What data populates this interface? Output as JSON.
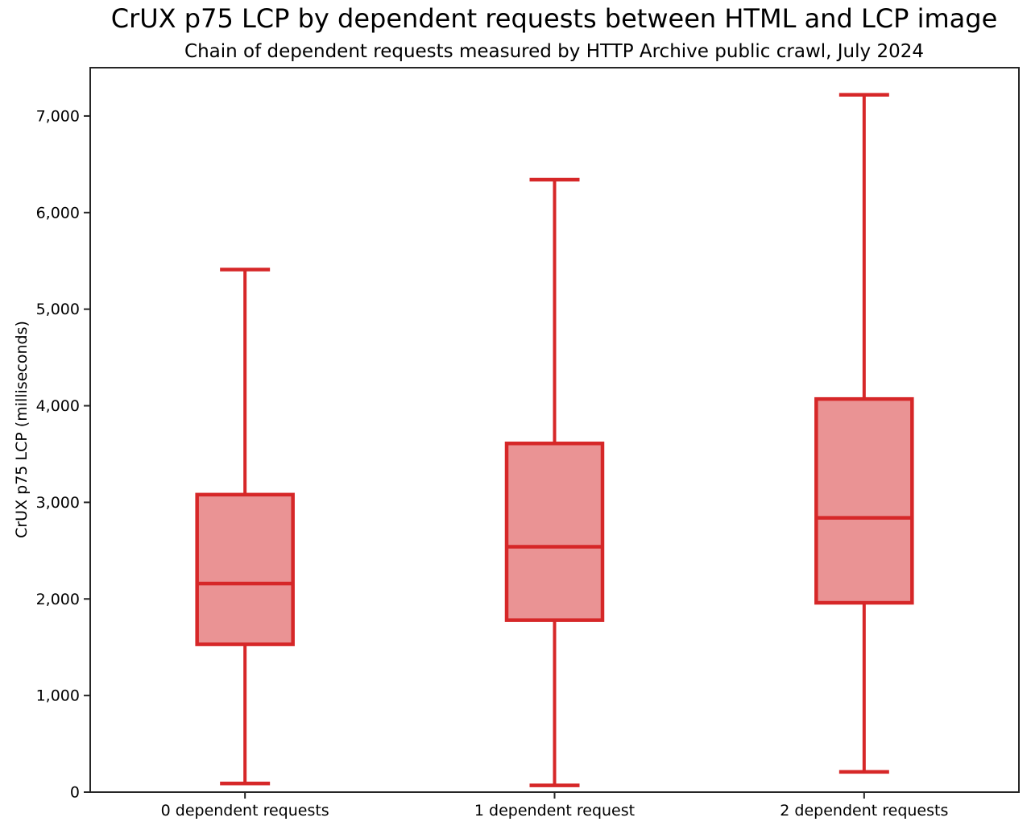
{
  "chart_data": {
    "type": "boxplot",
    "title": "CrUX p75 LCP by dependent requests between HTML and LCP image",
    "subtitle": "Chain of dependent requests measured by HTTP Archive public crawl, July 2024",
    "ylabel": "CrUX p75 LCP (milliseconds)",
    "xlabel": "",
    "ylim": [
      0,
      7500
    ],
    "y_tick_values": [
      0,
      1000,
      2000,
      3000,
      4000,
      5000,
      6000,
      7000
    ],
    "y_tick_labels": [
      "0",
      "1,000",
      "2,000",
      "3,000",
      "4,000",
      "5,000",
      "6,000",
      "7,000"
    ],
    "categories": [
      "0 dependent requests",
      "1 dependent request",
      "2 dependent requests"
    ],
    "series": [
      {
        "category": "0 dependent requests",
        "whisker_low": 90,
        "q1": 1530,
        "median": 2160,
        "q3": 3080,
        "whisker_high": 5410
      },
      {
        "category": "1 dependent request",
        "whisker_low": 70,
        "q1": 1780,
        "median": 2540,
        "q3": 3610,
        "whisker_high": 6340
      },
      {
        "category": "2 dependent requests",
        "whisker_low": 210,
        "q1": 1960,
        "median": 2840,
        "q3": 4070,
        "whisker_high": 7220
      }
    ],
    "grid": false,
    "legend": false,
    "colors": {
      "box_edge": "#d62728",
      "box_fill": "#ea9394",
      "whisker": "#d62728",
      "median": "#d62728",
      "axis": "#262626",
      "text": "#000000"
    }
  }
}
